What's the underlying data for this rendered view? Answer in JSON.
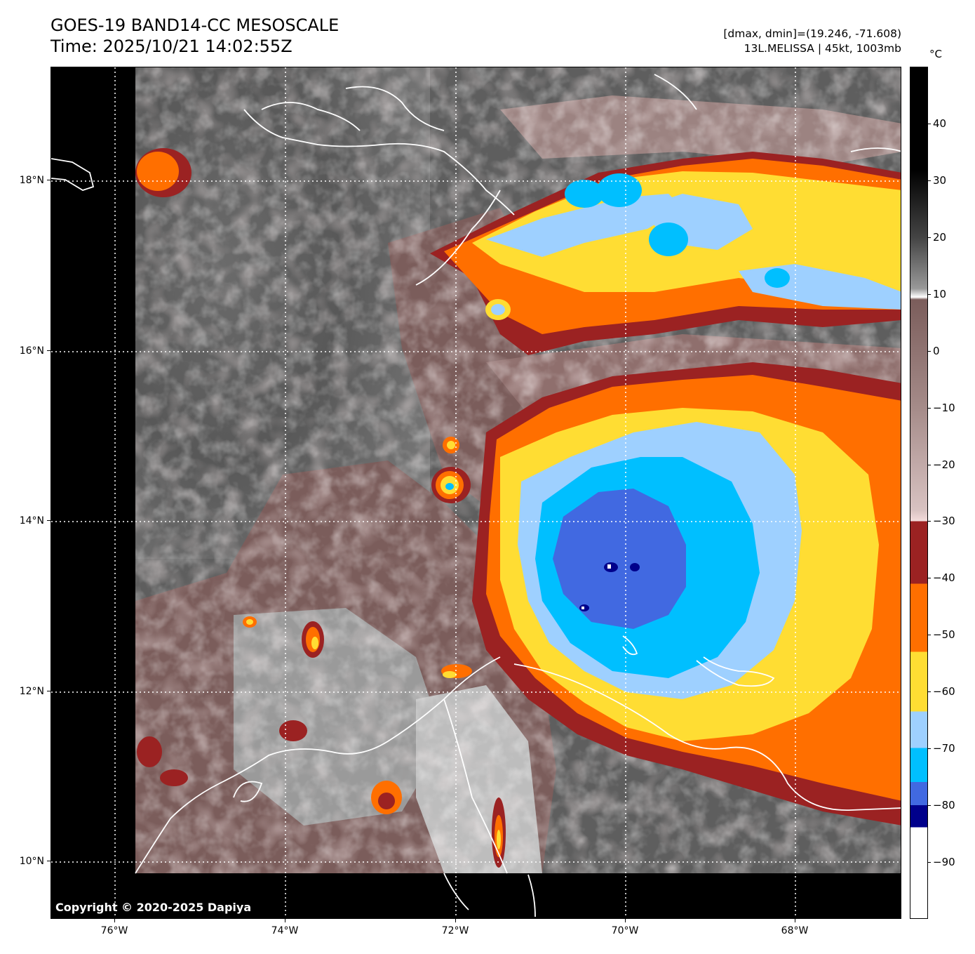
{
  "header": {
    "title_line1": "GOES-19 BAND14-CC MESOSCALE",
    "title_line2": "Time: 2025/10/21 14:02:55Z",
    "info_line1": "[dmax, dmin]=(19.246, -71.608)",
    "info_line2": "13L.MELISSA | 45kt, 1003mb"
  },
  "map": {
    "copyright": "Copyright © 2020-2025 Dapiya",
    "lat_labels": [
      {
        "text": "18°N",
        "lat": 18
      },
      {
        "text": "16°N",
        "lat": 16
      },
      {
        "text": "14°N",
        "lat": 14
      },
      {
        "text": "12°N",
        "lat": 12
      },
      {
        "text": "10°N",
        "lat": 10
      }
    ],
    "lon_labels": [
      {
        "text": "76°W",
        "lon": -76
      },
      {
        "text": "74°W",
        "lon": -74
      },
      {
        "text": "72°W",
        "lon": -72
      },
      {
        "text": "70°W",
        "lon": -70
      },
      {
        "text": "68°W",
        "lon": -68
      }
    ],
    "extent": {
      "lon_min": -76.75,
      "lon_max": -66.75,
      "lat_min": 9.33,
      "lat_max": 19.33
    },
    "storm_center": {
      "lat": 13.5,
      "lon": -70.0
    }
  },
  "colorbar": {
    "unit": "°C",
    "range": [
      -100,
      50
    ],
    "labels": [
      "40",
      "30",
      "20",
      "10",
      "0",
      "−10",
      "−20",
      "−30",
      "−40",
      "−50",
      "−60",
      "−70",
      "−80",
      "−90"
    ],
    "label_values": [
      40,
      30,
      20,
      10,
      0,
      -10,
      -20,
      -30,
      -40,
      -50,
      -60,
      -70,
      -80,
      -90
    ],
    "colors": {
      "black": "#000000",
      "white": "#ffffff",
      "brown": "#7b5d5b",
      "pink": "#f4dcdc",
      "dark_red": "#9b2222",
      "orange": "#ff6f00",
      "yellow": "#ffdd33",
      "light_blue": "#9ed0ff",
      "sky_blue": "#00bfff",
      "royal_blue": "#4169e1",
      "navy": "#00008b"
    }
  }
}
